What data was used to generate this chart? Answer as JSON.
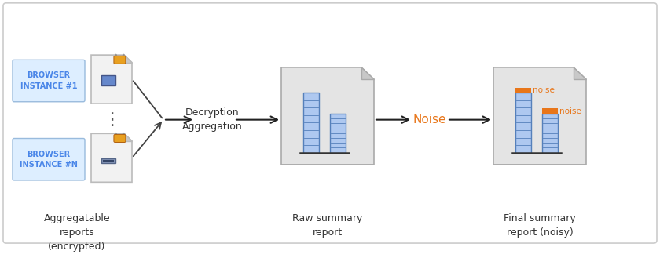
{
  "bg_color": "#ffffff",
  "border_color": "#cccccc",
  "blue_label_color": "#4a86e8",
  "orange_color": "#e8a020",
  "arrow_color": "#222222",
  "text_color": "#333333",
  "bar_fill_color": "#aec8f0",
  "bar_edge_color": "#5580bb",
  "doc_bg_color": "#e8e8e8",
  "browser_bg_color": "#ddeeff",
  "noise_color": "#e8761a",
  "label1": "BROWSER\nINSTANCE #1",
  "label2": "BROWSER\nINSTANCE #N",
  "label_agg": "Aggregatable\nreports\n(encrypted)",
  "label_dec": "Decryption\nAggregation",
  "label_raw": "Raw summary\nreport",
  "label_final": "Final summary\nreport (noisy)",
  "label_noise": "Noise",
  "noise_tag": "noise",
  "dots": "⋮",
  "figsize": [
    8.4,
    3.29
  ],
  "dpi": 100,
  "ylim": [
    0,
    329
  ],
  "xlim": [
    0,
    840
  ]
}
